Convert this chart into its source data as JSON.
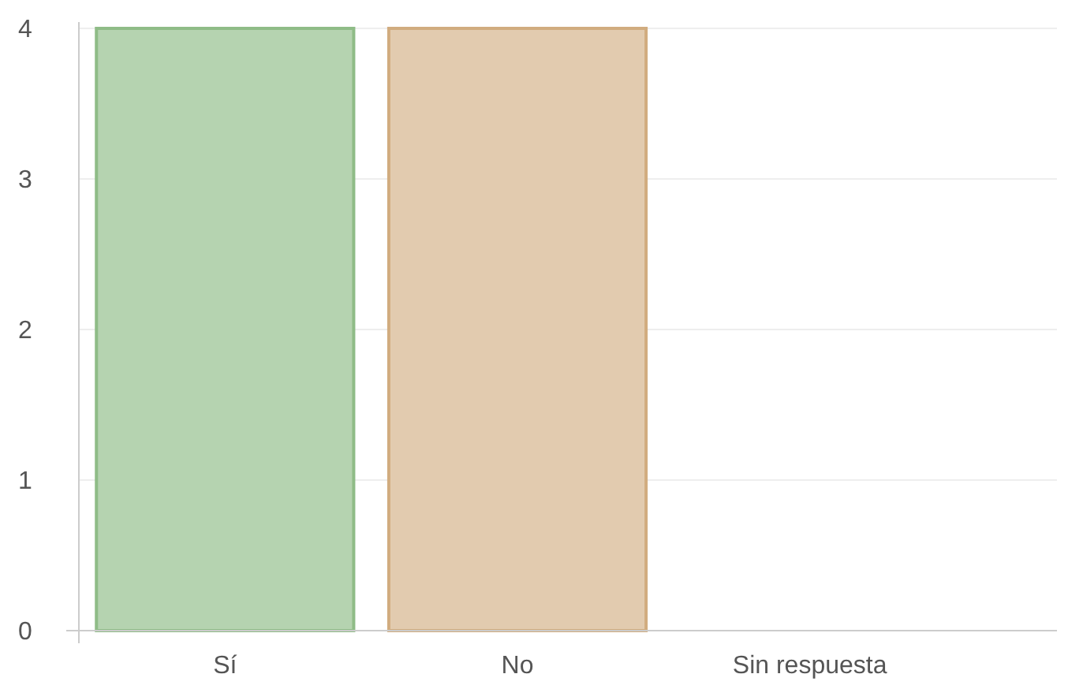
{
  "chart_data": {
    "type": "bar",
    "categories": [
      "Sí",
      "No",
      "Sin respuesta"
    ],
    "values": [
      4,
      4,
      0
    ],
    "colors": [
      "#b5d3b0",
      "#e2cbaf",
      "#f3e6b8"
    ],
    "ylim": [
      0,
      4
    ],
    "yticks": [
      0,
      1,
      2,
      3,
      4
    ],
    "grid": "y"
  }
}
